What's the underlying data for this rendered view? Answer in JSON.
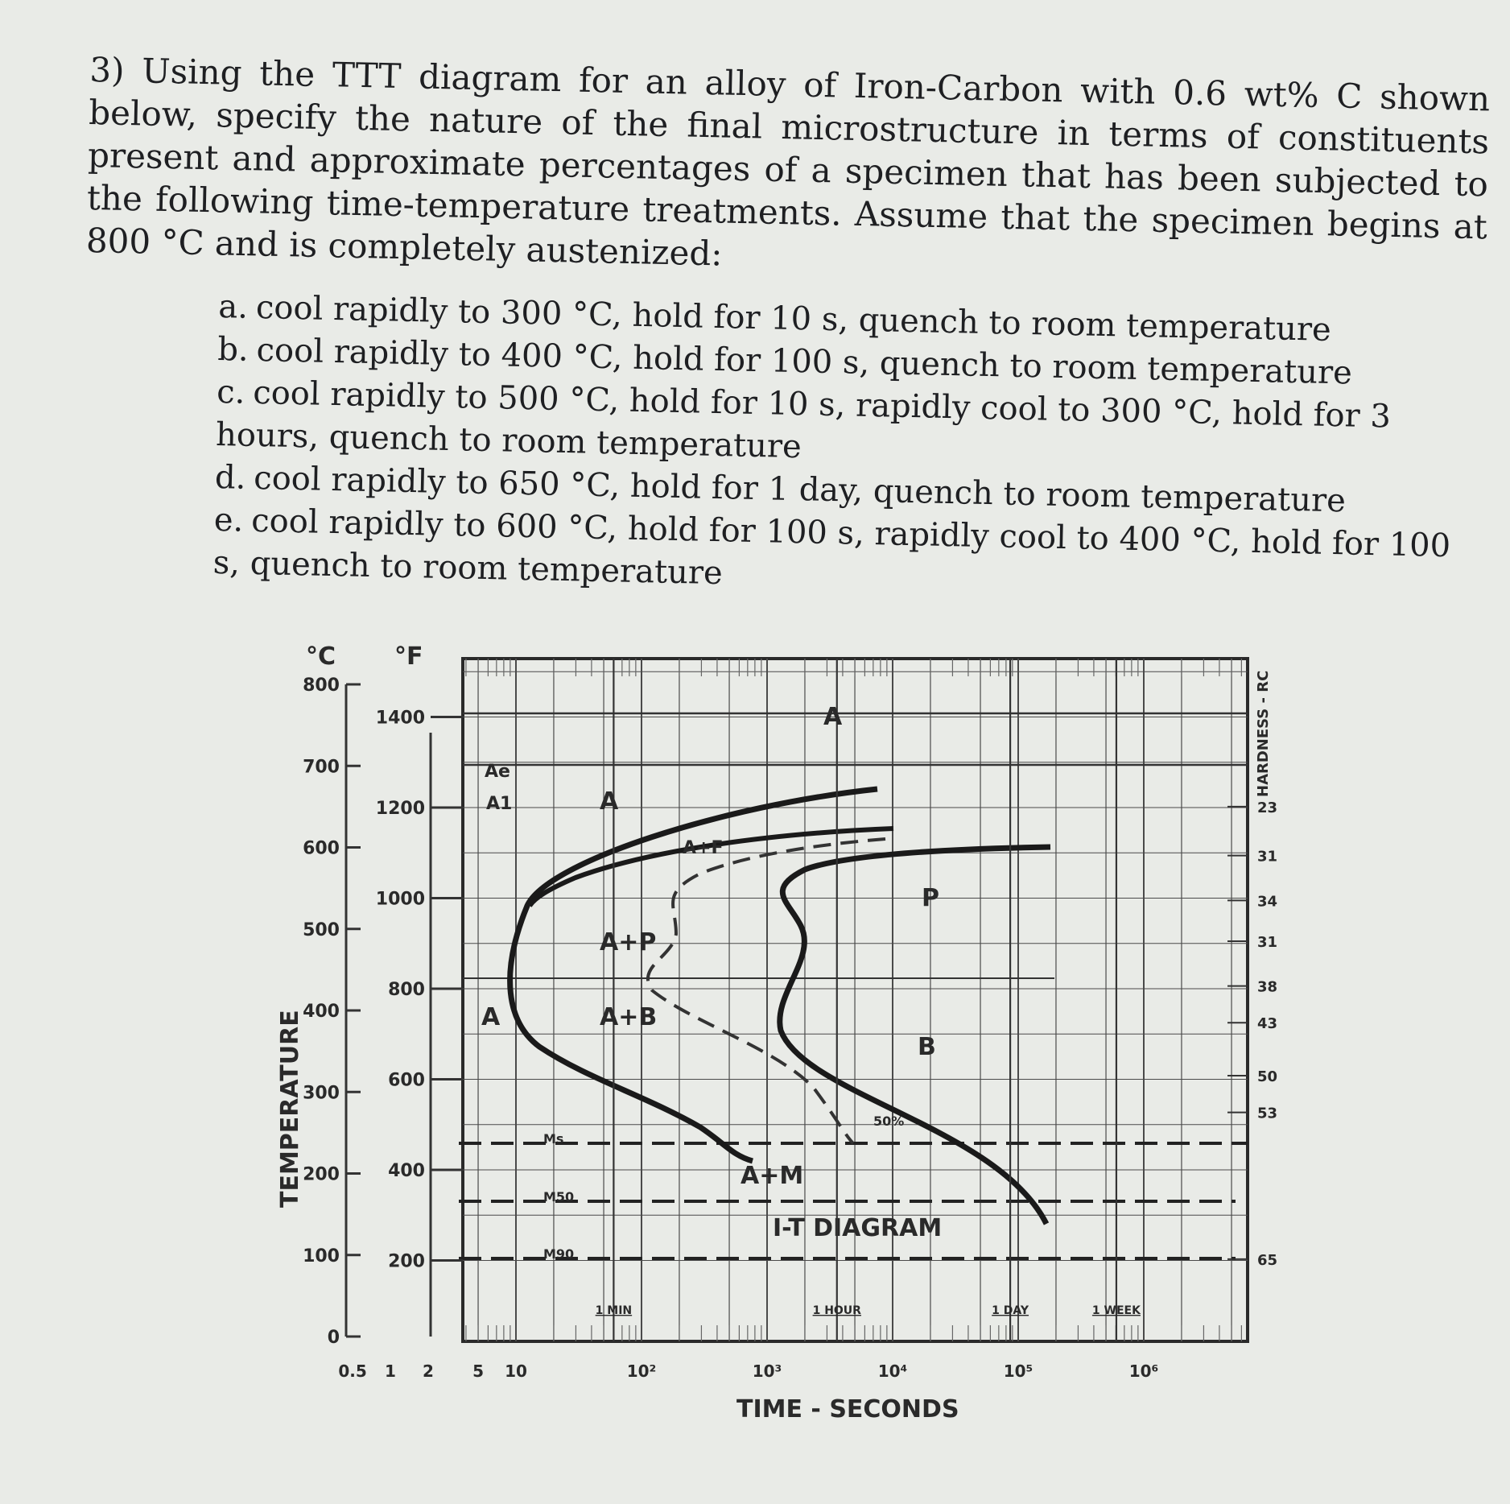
{
  "question": {
    "text": "3) Using the TTT diagram for an alloy of Iron-Carbon with 0.6 wt% C shown below, specify the nature of the final microstructure in terms of constituents present and approximate percentages of a specimen that has been subjected to the following time-temperature treatments. Assume that the specimen begins at 800 °C and is completely austenized:",
    "parts": [
      {
        "letter": "a.",
        "text": "cool rapidly to 300 °C, hold for 10 s, quench to room temperature"
      },
      {
        "letter": "b.",
        "text": "cool rapidly to 400 °C, hold for 100 s, quench to room temperature"
      },
      {
        "letter": "c.",
        "text": "cool rapidly to 500 °C, hold for 10 s, rapidly cool to 300 °C, hold for 3 hours, quench to room temperature"
      },
      {
        "letter": "d.",
        "text": "cool rapidly to 650 °C, hold for 1 day, quench to room temperature"
      },
      {
        "letter": "e.",
        "text": "cool rapidly to 600 °C, hold for 100 s, rapidly cool to 400 °C, hold for 100 s, quench to room temperature"
      }
    ]
  },
  "diagram": {
    "title": "I-T DIAGRAM",
    "y_axis_label": "TEMPERATURE",
    "unit_c": "°C",
    "unit_f": "°F",
    "x_axis_label": "TIME - SECONDS",
    "hardness_label": "HARDNESS - RC",
    "celsius_ticks": [
      "800",
      "700",
      "600",
      "500",
      "400",
      "300",
      "200",
      "100",
      "0"
    ],
    "fahrenheit_ticks": [
      "1400",
      "1200",
      "1000",
      "800",
      "600",
      "400",
      "200"
    ],
    "time_ticks": [
      "0.5",
      "1",
      "2",
      "5",
      "10",
      "10²",
      "10³",
      "10⁴",
      "10⁵",
      "10⁶"
    ],
    "time_markers": [
      "1 MIN",
      "1 HOUR",
      "1 DAY",
      "1 WEEK"
    ],
    "hardness_values": [
      "23",
      "31",
      "34",
      "31",
      "38",
      "43",
      "50",
      "53",
      "65"
    ],
    "region_labels": {
      "a_top": "A",
      "ae": "Ae",
      "a1": "A1",
      "a_upper": "A",
      "a_plus_f": "A+F",
      "a_plus_p": "A+P",
      "p": "P",
      "a_left": "A",
      "a_plus_b": "A+B",
      "b": "B",
      "a_plus_m": "A+M",
      "fifty_pct": "50%",
      "ms": "Ms",
      "m50": "M50",
      "m90": "M90"
    }
  }
}
